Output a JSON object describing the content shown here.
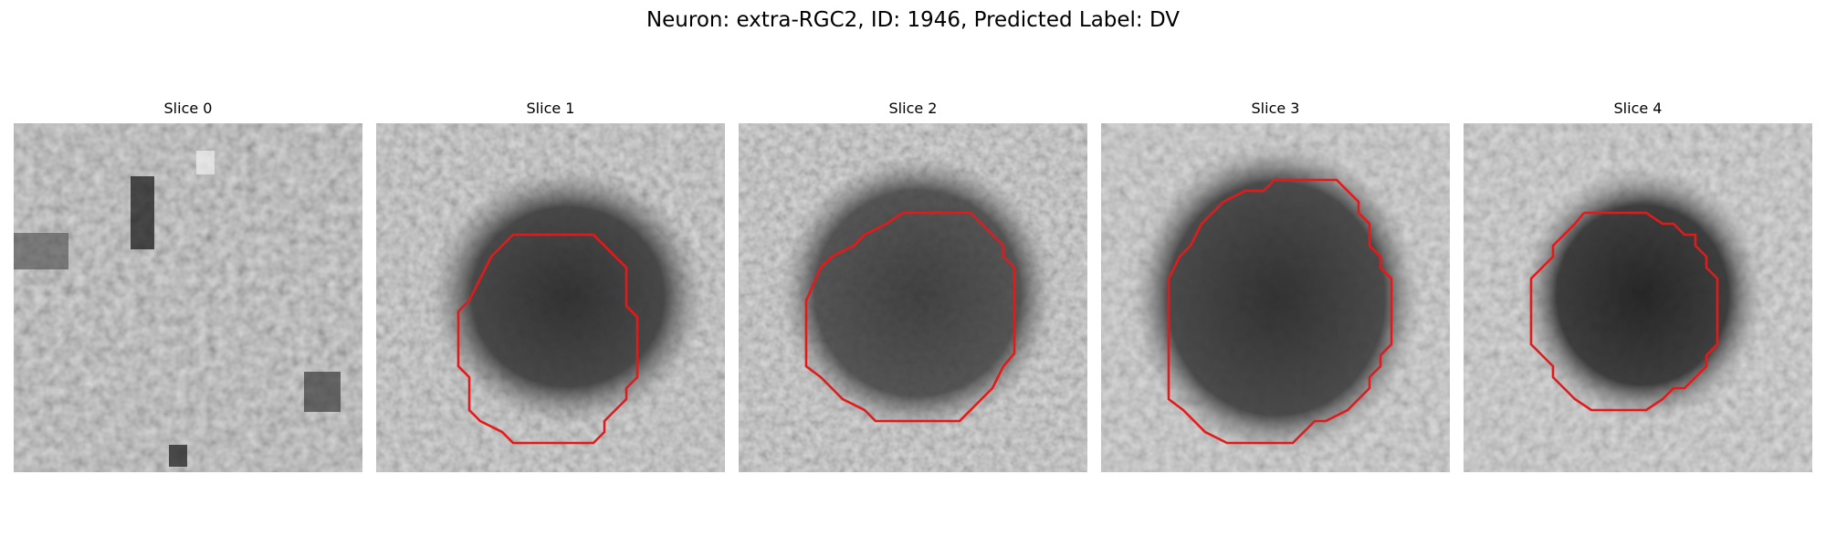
{
  "figure": {
    "title": "Neuron: extra-RGC2, ID: 1946, Predicted Label: DV"
  },
  "panels": [
    {
      "title": "Slice 0",
      "has_contour": false
    },
    {
      "title": "Slice 1",
      "has_contour": true
    },
    {
      "title": "Slice 2",
      "has_contour": true
    },
    {
      "title": "Slice 3",
      "has_contour": true
    },
    {
      "title": "Slice 4",
      "has_contour": true
    }
  ],
  "colors": {
    "contour": "#e41a1a",
    "background": "#ffffff"
  }
}
